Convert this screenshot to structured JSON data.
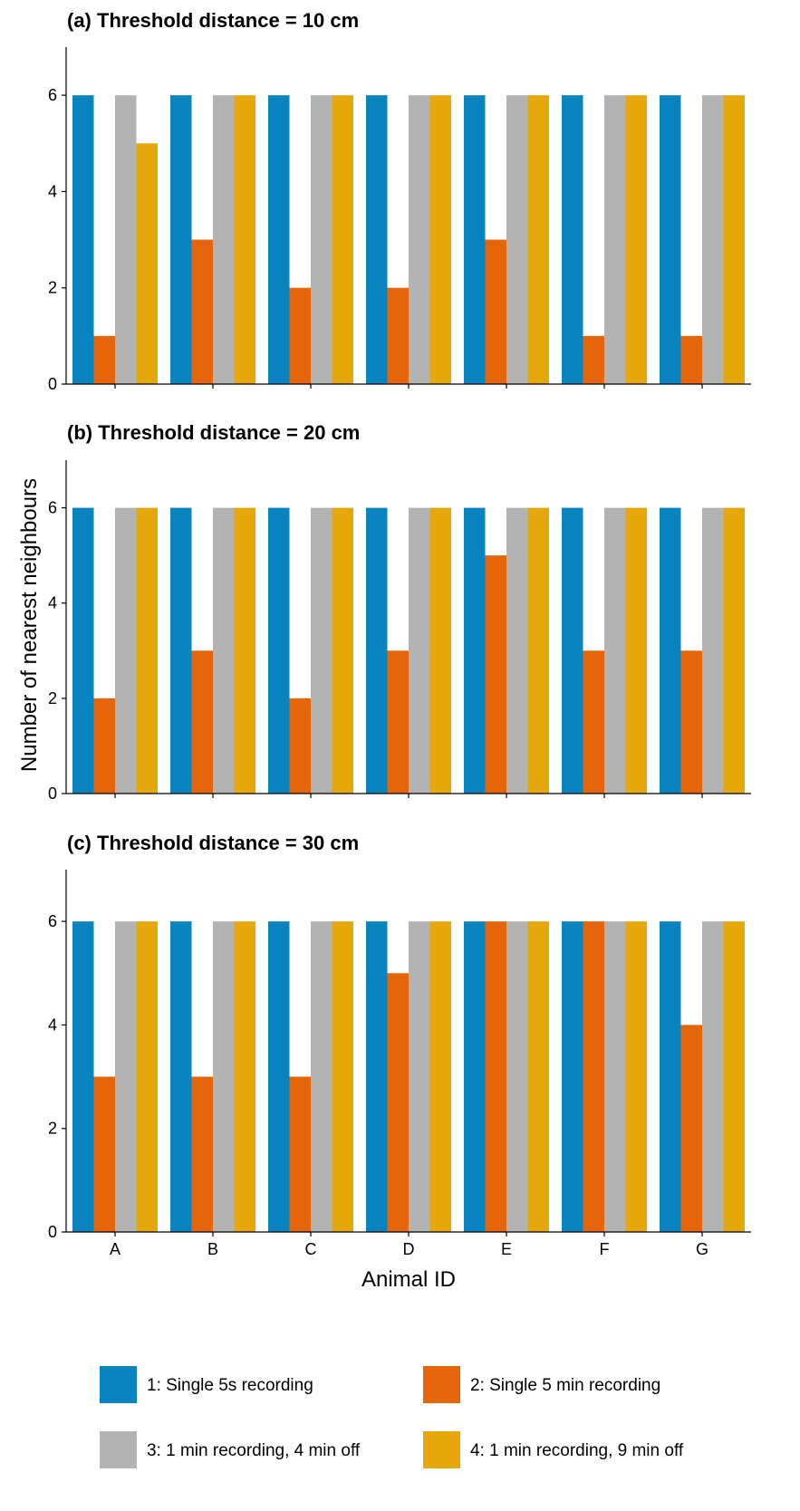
{
  "chart_data": {
    "type": "bar",
    "ylabel": "Number of nearest neighbours",
    "xlabel": "Animal ID",
    "categories": [
      "A",
      "B",
      "C",
      "D",
      "E",
      "F",
      "G"
    ],
    "ylim": [
      0,
      7
    ],
    "yticks": [
      "0",
      "2",
      "4",
      "6"
    ],
    "grid": false,
    "legend_position": "bottom",
    "series_style": [
      {
        "label": "1: Single 5s recording",
        "color": "#0a84bf"
      },
      {
        "label": "2: Single 5 min recording",
        "color": "#e5650a"
      },
      {
        "label": "3: 1 min recording, 4 min off",
        "color": "#b3b3b3"
      },
      {
        "label": "4: 1 min recording, 9 min off",
        "color": "#e6a70a"
      }
    ],
    "panels": [
      {
        "title": "(a) Threshold distance = 10 cm",
        "series": [
          {
            "values": [
              6,
              6,
              6,
              6,
              6,
              6,
              6
            ]
          },
          {
            "values": [
              1,
              3,
              2,
              2,
              3,
              1,
              1
            ]
          },
          {
            "values": [
              6,
              6,
              6,
              6,
              6,
              6,
              6
            ]
          },
          {
            "values": [
              5,
              6,
              6,
              6,
              6,
              6,
              6
            ]
          }
        ]
      },
      {
        "title": "(b) Threshold distance = 20 cm",
        "series": [
          {
            "values": [
              6,
              6,
              6,
              6,
              6,
              6,
              6
            ]
          },
          {
            "values": [
              2,
              3,
              2,
              3,
              5,
              3,
              3
            ]
          },
          {
            "values": [
              6,
              6,
              6,
              6,
              6,
              6,
              6
            ]
          },
          {
            "values": [
              6,
              6,
              6,
              6,
              6,
              6,
              6
            ]
          }
        ]
      },
      {
        "title": "(c) Threshold distance = 30 cm",
        "series": [
          {
            "values": [
              6,
              6,
              6,
              6,
              6,
              6,
              6
            ]
          },
          {
            "values": [
              3,
              3,
              3,
              5,
              6,
              6,
              4
            ]
          },
          {
            "values": [
              6,
              6,
              6,
              6,
              6,
              6,
              6
            ]
          },
          {
            "values": [
              6,
              6,
              6,
              6,
              6,
              6,
              6
            ]
          }
        ]
      }
    ]
  }
}
